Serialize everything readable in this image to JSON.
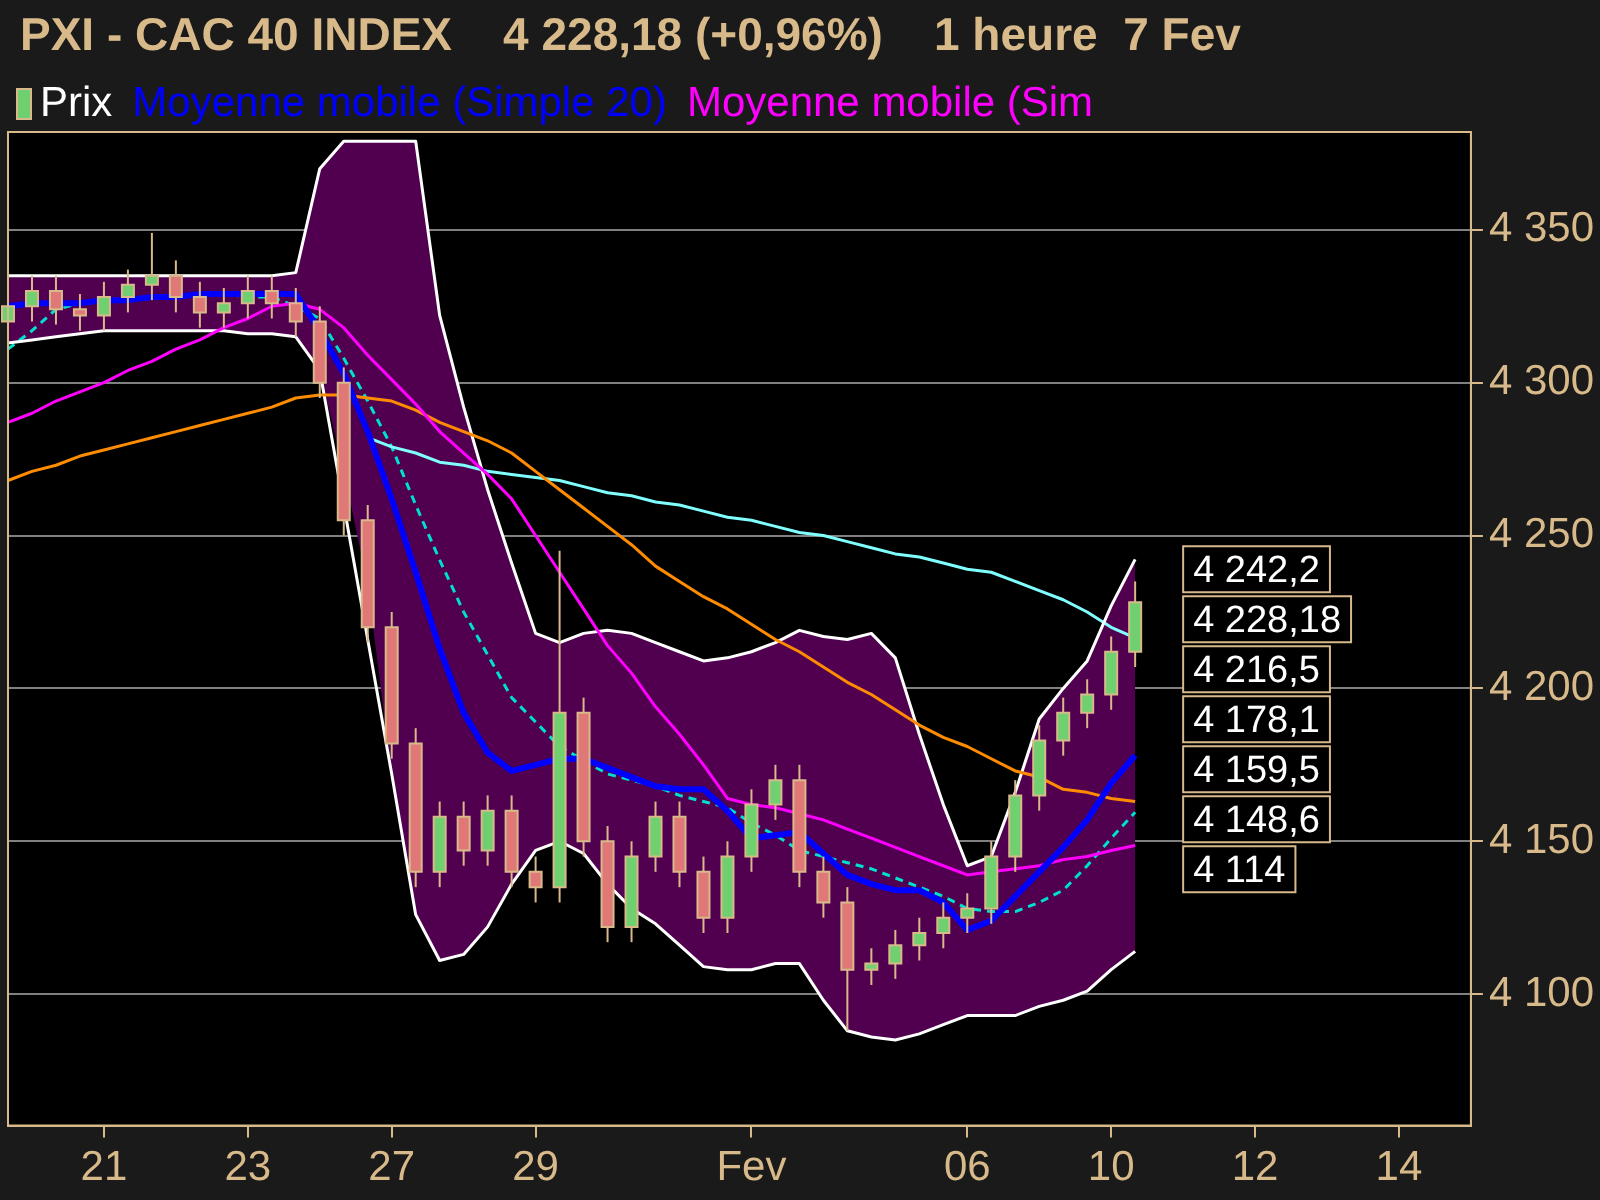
{
  "chart_data": {
    "type": "line",
    "title": "PXI - CAC 40 INDEX    4 228,18 (+0,96%)    1 heure  7 Fev",
    "categories": [
      null,
      null,
      null,
      null,
      "21",
      null,
      null,
      null,
      null,
      null,
      "23",
      null,
      null,
      null,
      null,
      null,
      "27",
      null,
      null,
      null,
      null,
      null,
      "29",
      null,
      null,
      null,
      null,
      null,
      null,
      null,
      null,
      "Fev",
      null,
      null,
      null,
      null,
      null,
      null,
      null,
      null,
      "06",
      null,
      null,
      null,
      null,
      null,
      "10",
      null,
      null,
      null,
      null,
      null,
      "12",
      null,
      null,
      null,
      null,
      null,
      "14",
      null,
      null,
      null
    ],
    "ylim": [
      4057,
      4382
    ],
    "yticks": [
      {
        "value": 4100,
        "label": "4 100"
      },
      {
        "value": 4150,
        "label": "4 150"
      },
      {
        "value": 4200,
        "label": "4 200"
      },
      {
        "value": 4250,
        "label": "4 250"
      },
      {
        "value": 4300,
        "label": "4 300"
      },
      {
        "value": 4350,
        "label": "4 350"
      }
    ],
    "grid": "y",
    "legend": "top left",
    "marker": "none",
    "annotations": [
      "4 242,2",
      "4 228,18",
      "4 216,5",
      "4 178,1",
      "4 159,5",
      "4 148,6",
      "4 114"
    ],
    "series": [
      {
        "type": "candlestick",
        "name": "Prix",
        "ohlc": [
          [
            4320,
            4330,
            4315,
            4325
          ],
          [
            4325,
            4335,
            4320,
            4330
          ],
          [
            4330,
            4335,
            4319,
            4324
          ],
          [
            4324,
            4329,
            4317,
            4322
          ],
          [
            4322,
            4333,
            4317,
            4328
          ],
          [
            4328,
            4337,
            4323,
            4332
          ],
          [
            4332,
            4349,
            4327,
            4335
          ],
          [
            4335,
            4340,
            4323,
            4328
          ],
          [
            4328,
            4333,
            4318,
            4323
          ],
          [
            4323,
            4331,
            4318,
            4326
          ],
          [
            4326,
            4335,
            4321,
            4330
          ],
          [
            4330,
            4335,
            4321,
            4326
          ],
          [
            4326,
            4331,
            4315,
            4320
          ],
          [
            4320,
            4325,
            4295,
            4300
          ],
          [
            4300,
            4305,
            4250,
            4255
          ],
          [
            4255,
            4260,
            4215,
            4220
          ],
          [
            4220,
            4225,
            4177,
            4182
          ],
          [
            4182,
            4187,
            4135,
            4140
          ],
          [
            4140,
            4163,
            4135,
            4158
          ],
          [
            4158,
            4163,
            4142,
            4147
          ],
          [
            4147,
            4165,
            4142,
            4160
          ],
          [
            4160,
            4165,
            4135,
            4140
          ],
          [
            4140,
            4145,
            4130,
            4135
          ],
          [
            4135,
            4245,
            4130,
            4192
          ],
          [
            4192,
            4197,
            4145,
            4150
          ],
          [
            4150,
            4155,
            4117,
            4122
          ],
          [
            4122,
            4150,
            4117,
            4145
          ],
          [
            4145,
            4163,
            4140,
            4158
          ],
          [
            4158,
            4163,
            4135,
            4140
          ],
          [
            4140,
            4145,
            4120,
            4125
          ],
          [
            4125,
            4150,
            4120,
            4145
          ],
          [
            4145,
            4167,
            4140,
            4162
          ],
          [
            4162,
            4175,
            4157,
            4170
          ],
          [
            4170,
            4175,
            4135,
            4140
          ],
          [
            4140,
            4145,
            4125,
            4130
          ],
          [
            4130,
            4135,
            4088,
            4108
          ],
          [
            4108,
            4115,
            4103,
            4110
          ],
          [
            4110,
            4121,
            4105,
            4116
          ],
          [
            4116,
            4125,
            4111,
            4120
          ],
          [
            4120,
            4130,
            4115,
            4125
          ],
          [
            4125,
            4133,
            4120,
            4128
          ],
          [
            4128,
            4150,
            4123,
            4145
          ],
          [
            4145,
            4170,
            4140,
            4165
          ],
          [
            4165,
            4188,
            4160,
            4183
          ],
          [
            4183,
            4197,
            4178,
            4192
          ],
          [
            4192,
            4203,
            4187,
            4198
          ],
          [
            4198,
            4217,
            4193,
            4212
          ],
          [
            4212,
            4235,
            4207,
            4228.18
          ],
          null,
          null,
          null,
          null,
          null,
          null,
          null,
          null,
          null,
          null,
          null,
          null,
          null,
          null
        ]
      },
      {
        "name": "Moyenne mobile (Simple 20)",
        "color": "#0000ff",
        "values": [
          4325,
          4326,
          4326,
          4326,
          4327,
          4327,
          4328,
          4328,
          4329,
          4329,
          4329,
          4329,
          4329,
          4317,
          4303,
          4284,
          4262,
          4238,
          4213,
          4192,
          4179,
          4173,
          4175,
          4177,
          4177,
          4174,
          4171,
          4168,
          4167,
          4167,
          4160,
          4151,
          4152,
          4153,
          4146,
          4139,
          4136,
          4134,
          4134,
          4130,
          4121,
          4124,
          4132,
          4140,
          4148,
          4157,
          4169,
          4178.1,
          null,
          null,
          null,
          null,
          null,
          null,
          null,
          null,
          null,
          null,
          null,
          null,
          null,
          null
        ],
        "upper": [
          4335,
          4335,
          4335,
          4335,
          4335,
          4335,
          4335,
          4335,
          4335,
          4335,
          4335,
          4335,
          4336,
          4370,
          4379,
          4379,
          4379,
          4379,
          4322,
          4292,
          4265,
          4241,
          4218,
          4215,
          4218,
          4219,
          4218,
          4215,
          4212,
          4209,
          4210,
          4212,
          4215,
          4219,
          4217,
          4216,
          4218,
          4210,
          4185,
          4162,
          4142,
          4145,
          4166,
          4190,
          4200,
          4209,
          4227,
          4242.2,
          null,
          null,
          null,
          null,
          null,
          null,
          null,
          null,
          null,
          null,
          null,
          null,
          null,
          null
        ],
        "lower": [
          4313,
          4314,
          4315,
          4316,
          4317,
          4317,
          4317,
          4317,
          4317,
          4317,
          4316,
          4316,
          4315,
          4304,
          4271,
          4234,
          4172,
          4126,
          4111,
          4113,
          4122,
          4136,
          4147,
          4150,
          4146,
          4136,
          4128,
          4123,
          4116,
          4109,
          4108,
          4108,
          4110,
          4110,
          4098,
          4088,
          4086,
          4085,
          4087,
          4090,
          4093,
          4093,
          4093,
          4096,
          4098,
          4101,
          4108,
          4114,
          null,
          null,
          null,
          null,
          null,
          null,
          null,
          null,
          null,
          null,
          null,
          null,
          null,
          null
        ]
      },
      {
        "name": "Moyenne mobile (Sim",
        "color": "#ff00ff",
        "values": [
          4287,
          4290,
          4294,
          4297,
          4300,
          4304,
          4307,
          4311,
          4314,
          4318,
          4321,
          4325,
          4326,
          4324,
          4318,
          4309,
          4301,
          4293,
          4284,
          4277,
          4270,
          4262,
          4250,
          4238,
          4226,
          4214,
          4205,
          4194,
          4185,
          4175,
          4164,
          4162,
          4161,
          4159,
          4157,
          4154,
          4151,
          4148,
          4145,
          4142,
          4139,
          4140,
          4141,
          4142,
          4144,
          4145,
          4147,
          4148.6,
          null,
          null,
          null,
          null,
          null,
          null,
          null,
          null,
          null,
          null,
          null,
          null,
          null,
          null
        ]
      },
      {
        "color": "#ff8c00",
        "values": [
          4268,
          4271,
          4273,
          4276,
          4278,
          4280,
          4282,
          4284,
          4286,
          4288,
          4290,
          4292,
          4295,
          4296,
          4296,
          4295,
          4294,
          4291,
          4287,
          4284,
          4281,
          4277,
          4271,
          4265,
          4259,
          4253,
          4247,
          4240,
          4235,
          4230,
          4226,
          4221,
          4216,
          4212,
          4207,
          4202,
          4198,
          4193,
          4188,
          4184,
          4181,
          4177,
          4173,
          4171,
          4167,
          4166,
          4164,
          4163,
          null,
          null,
          null,
          null,
          null,
          null,
          null,
          null,
          null,
          null,
          null,
          null,
          null,
          null
        ]
      },
      {
        "color": "#ffffff",
        "values": [
          4335,
          4335,
          4335,
          4335,
          4335,
          4335,
          4335,
          4335,
          4335,
          4335,
          4335,
          4335,
          4336,
          4370,
          4379,
          4379,
          4379,
          4379,
          4322,
          4292,
          4265,
          4241,
          4218,
          4215,
          4218,
          4219,
          4218,
          4215,
          4212,
          4209,
          4210,
          4212,
          4215,
          4219,
          4217,
          4216,
          4218,
          4210,
          4185,
          4162,
          4142,
          4145,
          4166,
          4190,
          4200,
          4209,
          4227,
          4242.2,
          null,
          null,
          null,
          null,
          null,
          null,
          null,
          null,
          null,
          null,
          null,
          null,
          null,
          null
        ]
      },
      {
        "color": "#ffffff",
        "values": [
          4313,
          4314,
          4315,
          4316,
          4317,
          4317,
          4317,
          4317,
          4317,
          4317,
          4316,
          4316,
          4315,
          4304,
          null,
          null,
          4172,
          4126,
          4111,
          4113,
          4122,
          4136,
          4147,
          4150,
          4146,
          4136,
          4128,
          4123,
          4116,
          4109,
          4108,
          4108,
          4110,
          4110,
          4098,
          4088,
          4086,
          4085,
          4087,
          4090,
          4093,
          4093,
          4093,
          4096,
          4098,
          4101,
          4108,
          4114,
          null,
          null,
          null,
          null,
          null,
          null,
          null,
          null,
          null,
          null,
          null,
          null,
          null,
          null
        ]
      },
      {
        "color": "#80ffff",
        "values": [
          null,
          null,
          null,
          null,
          null,
          null,
          null,
          null,
          null,
          null,
          null,
          null,
          null,
          null,
          null,
          4282,
          4279,
          4277,
          4274,
          4273,
          4271,
          4270,
          4269,
          4268,
          4266,
          4264,
          4263,
          4261,
          4260,
          4258,
          4256,
          4255,
          4253,
          4251,
          4250,
          4248,
          4246,
          4244,
          4243,
          4241,
          4239,
          4238,
          4235,
          4232,
          4229,
          4225,
          4220,
          4216.5,
          null,
          null,
          null,
          null,
          null,
          null,
          null,
          null,
          null,
          null,
          null,
          null,
          null,
          null
        ]
      },
      {
        "color": "#00e0d0",
        "line_style": "dashed",
        "values": [
          4311,
          4317,
          4324,
          4326,
          4327,
          4327,
          4328,
          null,
          null,
          4329,
          4328,
          4328,
          4325,
          4321,
          4308,
          4294,
          4279,
          4260,
          4242,
          4225,
          4211,
          4197,
          4189,
          4181,
          null,
          4172,
          4170,
          4168,
          4165,
          4163,
          4161,
          4156,
          4152,
          4147,
          4145,
          4143,
          4141,
          4138,
          4135,
          4132,
          4128,
          4127,
          4127,
          4130,
          4134,
          4142,
          4151,
          4159.5,
          null,
          null,
          null,
          null,
          null,
          null,
          null,
          null,
          null,
          null,
          null,
          null,
          null,
          null
        ]
      }
    ]
  }
}
